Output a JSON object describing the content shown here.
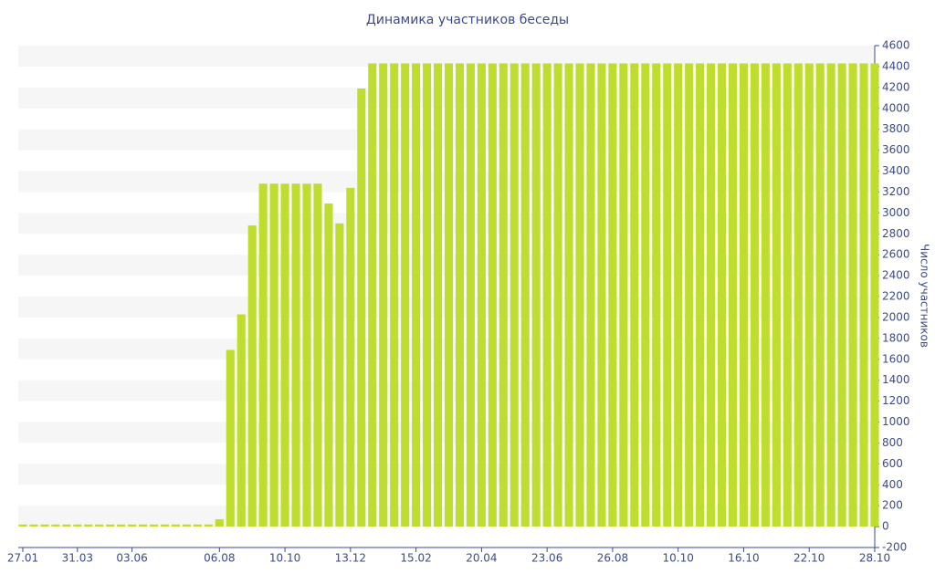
{
  "chart_data": {
    "type": "bar",
    "title": "Динамика участников беседы",
    "y_label": "Число участников",
    "categories": [
      "27.01",
      null,
      null,
      null,
      null,
      "31.03",
      null,
      null,
      null,
      null,
      "03.06",
      null,
      null,
      null,
      null,
      null,
      null,
      null,
      "06.08",
      null,
      null,
      null,
      null,
      null,
      "10.10",
      null,
      null,
      null,
      null,
      null,
      "13.12",
      null,
      null,
      null,
      null,
      null,
      "15.02",
      null,
      null,
      null,
      null,
      null,
      "20.04",
      null,
      null,
      null,
      null,
      null,
      "23.06",
      null,
      null,
      null,
      null,
      null,
      "26.08",
      null,
      null,
      null,
      null,
      null,
      "10.10",
      null,
      null,
      null,
      null,
      null,
      "16.10",
      null,
      null,
      null,
      null,
      null,
      "22.10",
      null,
      null,
      null,
      null,
      null,
      "28.10"
    ],
    "values": [
      20,
      20,
      20,
      20,
      20,
      20,
      20,
      20,
      20,
      20,
      20,
      20,
      20,
      20,
      20,
      20,
      20,
      20,
      70,
      1690,
      2030,
      2880,
      3280,
      3280,
      3280,
      3280,
      3280,
      3280,
      3090,
      2900,
      3240,
      4190,
      4430,
      4430,
      4430,
      4430,
      4430,
      4430,
      4430,
      4430,
      4430,
      4430,
      4430,
      4430,
      4430,
      4430,
      4430,
      4430,
      4430,
      4430,
      4430,
      4430,
      4430,
      4430,
      4430,
      4430,
      4430,
      4430,
      4430,
      4430,
      4430,
      4430,
      4430,
      4430,
      4430,
      4430,
      4430,
      4430,
      4430,
      4430,
      4430,
      4430,
      4430,
      4430,
      4430,
      4430,
      4430,
      4430,
      4430
    ],
    "color": "#bedd2e",
    "ylim": [
      -200,
      4600
    ],
    "yticks": [
      -200,
      0,
      200,
      400,
      600,
      800,
      1000,
      1200,
      1400,
      1600,
      1800,
      2000,
      2200,
      2400,
      2600,
      2800,
      3000,
      3200,
      3400,
      3600,
      3800,
      4000,
      4200,
      4400,
      4600
    ],
    "grid": "bands",
    "y_axis_side": "right"
  }
}
